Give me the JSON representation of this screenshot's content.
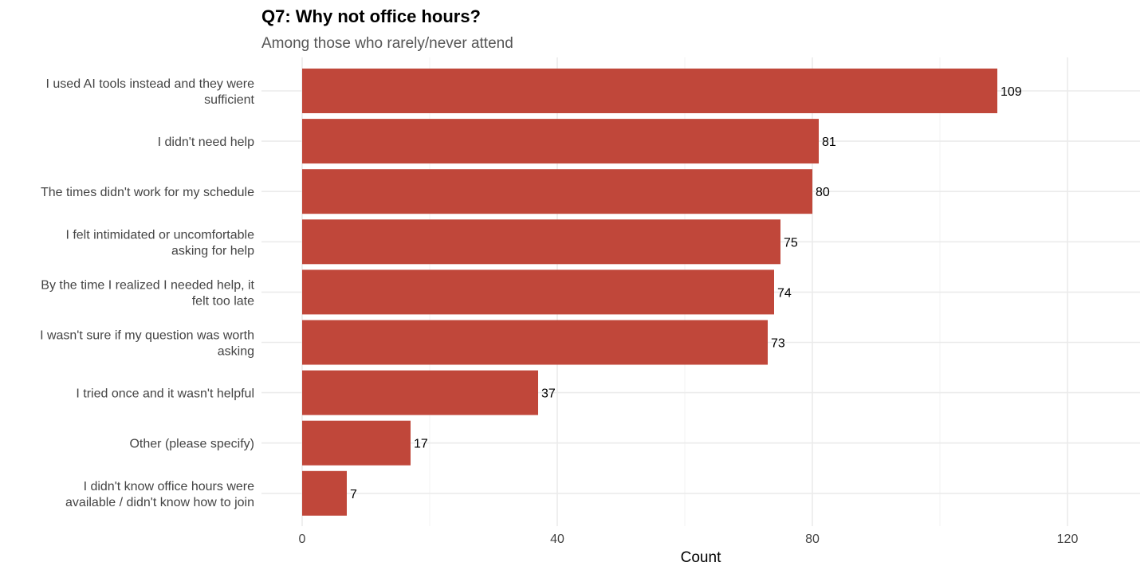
{
  "chart_data": {
    "type": "bar",
    "orientation": "horizontal",
    "title": "Q7: Why not office hours?",
    "subtitle": "Among those who rarely/never attend",
    "xlabel": "Count",
    "ylabel": "",
    "xlim": [
      0,
      130
    ],
    "xticks": [
      0,
      40,
      80,
      120
    ],
    "grid": true,
    "legend": "none",
    "bar_color": "#c0473a",
    "grid_color": "#ebebeb",
    "categories": [
      [
        "I used AI tools instead and they were",
        "sufficient"
      ],
      [
        "I didn't need help"
      ],
      [
        "The times didn't work for my schedule"
      ],
      [
        "I felt intimidated or uncomfortable",
        "asking for help"
      ],
      [
        "By the time I realized I needed help, it",
        "felt too late"
      ],
      [
        "I wasn't sure if my question was worth",
        "asking"
      ],
      [
        "I tried once and it wasn't helpful"
      ],
      [
        "Other (please specify)"
      ],
      [
        "I didn't know office hours were",
        "available / didn't know how to join"
      ]
    ],
    "values": [
      109,
      81,
      80,
      75,
      74,
      73,
      37,
      17,
      7
    ]
  }
}
